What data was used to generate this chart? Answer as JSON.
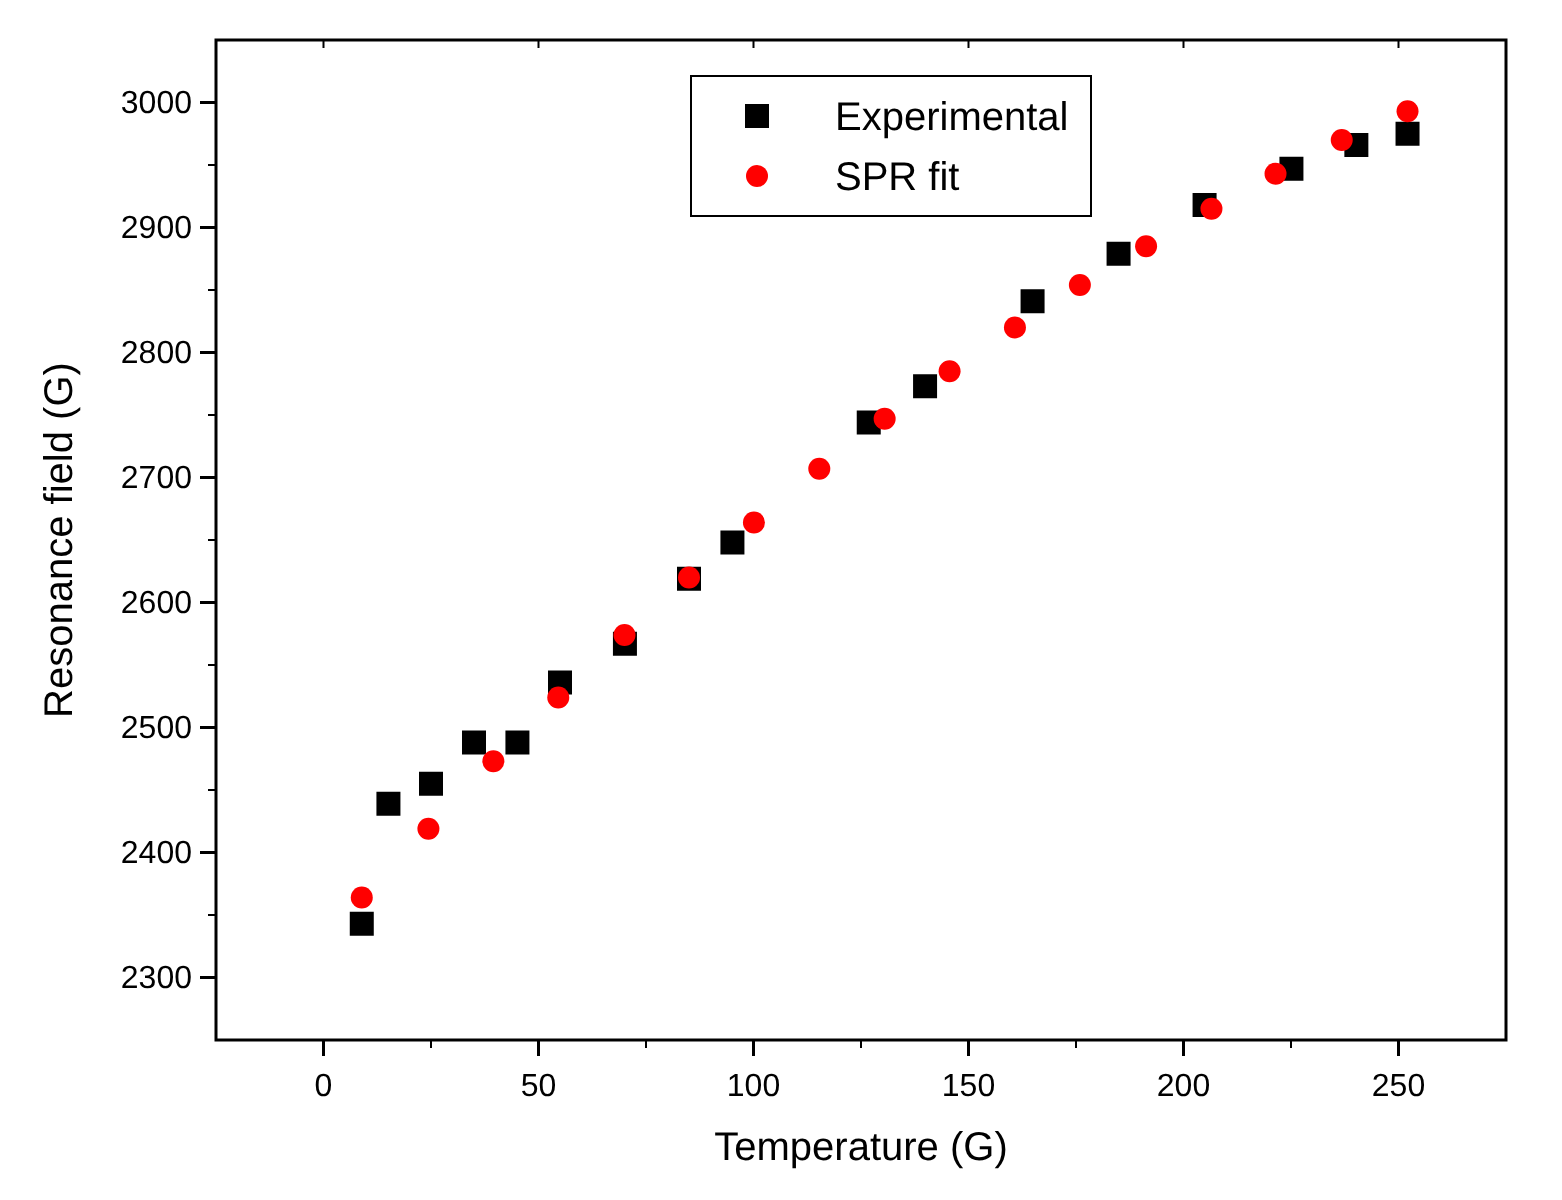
{
  "chart_data": {
    "type": "scatter",
    "xlabel": "Temperature (G)",
    "ylabel": "Resonance field (G)",
    "xlim": [
      -25,
      275
    ],
    "xticks": [
      0,
      50,
      100,
      150,
      200,
      250
    ],
    "ylim": [
      2250,
      3050
    ],
    "yticks": [
      2300,
      2400,
      2500,
      2600,
      2700,
      2800,
      2900,
      3000
    ],
    "legend": "top",
    "grid": false,
    "series": [
      {
        "name": "Experimental",
        "color": "#000000",
        "marker": "square",
        "x": [
          8.9,
          15.1,
          25,
          35,
          45.1,
          55,
          70.1,
          85,
          95.1,
          126.8,
          139.9,
          164.9,
          184.9,
          204.9,
          225.1,
          240.2,
          252.1
        ],
        "values": [
          2343,
          2439,
          2455,
          2488,
          2488,
          2536,
          2567,
          2619,
          2648,
          2744,
          2773,
          2841,
          2879,
          2918,
          2947,
          2966,
          2975
        ]
      },
      {
        "name": "SPR fit",
        "color": "#ff0000",
        "marker": "circle",
        "x": [
          8.9,
          24.4,
          39.5,
          54.6,
          70,
          85,
          100.1,
          115.3,
          130.5,
          145.6,
          160.8,
          175.9,
          191.3,
          206.5,
          221.4,
          236.8,
          252.1
        ],
        "values": [
          2364,
          2419,
          2473,
          2524,
          2574,
          2620,
          2664,
          2707,
          2747,
          2785,
          2820,
          2854,
          2885,
          2915,
          2943,
          2970,
          2993
        ]
      }
    ]
  }
}
